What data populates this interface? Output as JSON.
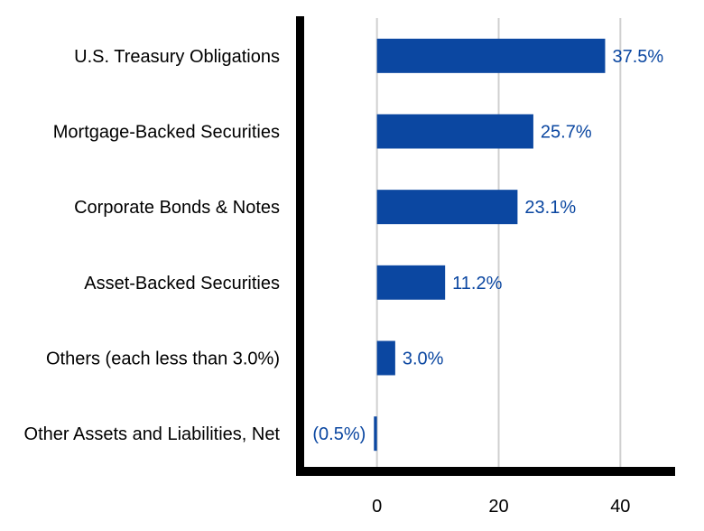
{
  "chart_data": {
    "type": "bar",
    "orientation": "horizontal",
    "categories": [
      "U.S. Treasury Obligations",
      "Mortgage-Backed Securities",
      "Corporate Bonds & Notes",
      "Asset-Backed Securities",
      "Others (each less than 3.0%)",
      "Other Assets and Liabilities, Net"
    ],
    "values": [
      37.5,
      25.7,
      23.1,
      11.2,
      3.0,
      -0.5
    ],
    "value_labels": [
      "37.5%",
      "25.7%",
      "23.1%",
      "11.2%",
      "3.0%",
      "(0.5%)"
    ],
    "xlim": [
      -13.3,
      49
    ],
    "xticks": [
      0,
      20,
      40
    ],
    "xtick_labels": [
      "0",
      "20",
      "40"
    ],
    "grid": true,
    "title": "",
    "xlabel": "",
    "ylabel": "",
    "bar_color": "#0b47a1",
    "label_color": "#0b47a1",
    "grid_color": "#d0d0d0",
    "axis_color": "#000000"
  }
}
